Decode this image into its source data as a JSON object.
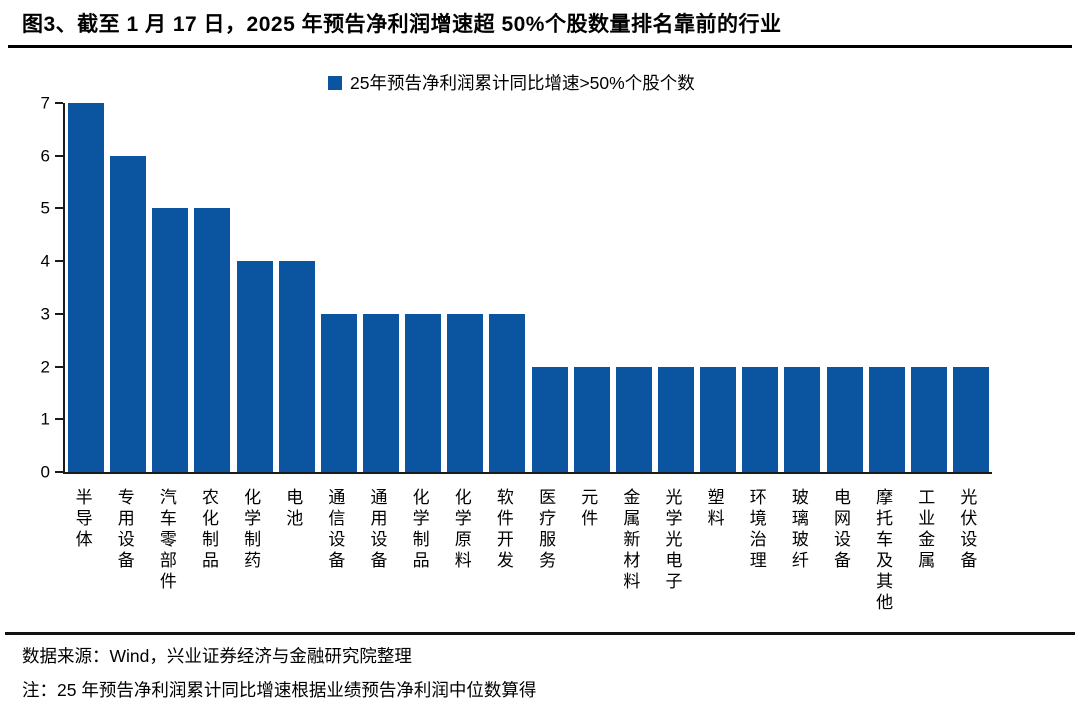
{
  "title": "图3、截至 1 月 17 日，2025 年预告净利润增速超 50%个股数量排名靠前的行业",
  "legend": {
    "label": "25年预告净利润累计同比增速>50%个股个数",
    "color": "#0B55A0"
  },
  "chart_data": {
    "type": "bar",
    "title": "",
    "xlabel": "",
    "ylabel": "",
    "categories": [
      "半导体",
      "专用设备",
      "汽车零部件",
      "农化制品",
      "化学制药",
      "电池",
      "通信设备",
      "通用设备",
      "化学制品",
      "化学原料",
      "软件开发",
      "医疗服务",
      "元件",
      "金属新材料",
      "光学光电子",
      "塑料",
      "环境治理",
      "玻璃玻纤",
      "电网设备",
      "摩托车及其他",
      "工业金属",
      "光伏设备"
    ],
    "values": [
      7,
      6,
      5,
      5,
      4,
      4,
      3,
      3,
      3,
      3,
      3,
      2,
      2,
      2,
      2,
      2,
      2,
      2,
      2,
      2,
      2,
      2
    ],
    "ylim": [
      0,
      7
    ],
    "yticks": [
      0,
      1,
      2,
      3,
      4,
      5,
      6,
      7
    ],
    "bar_color": "#0B55A0",
    "grid": false,
    "legend_position": "top-center",
    "legend_entries": [
      "25年预告净利润累计同比增速>50%个股个数"
    ]
  },
  "footer": {
    "source": "数据来源：Wind，兴业证券经济与金融研究院整理",
    "note": "注：25 年预告净利润累计同比增速根据业绩预告净利润中位数算得"
  }
}
